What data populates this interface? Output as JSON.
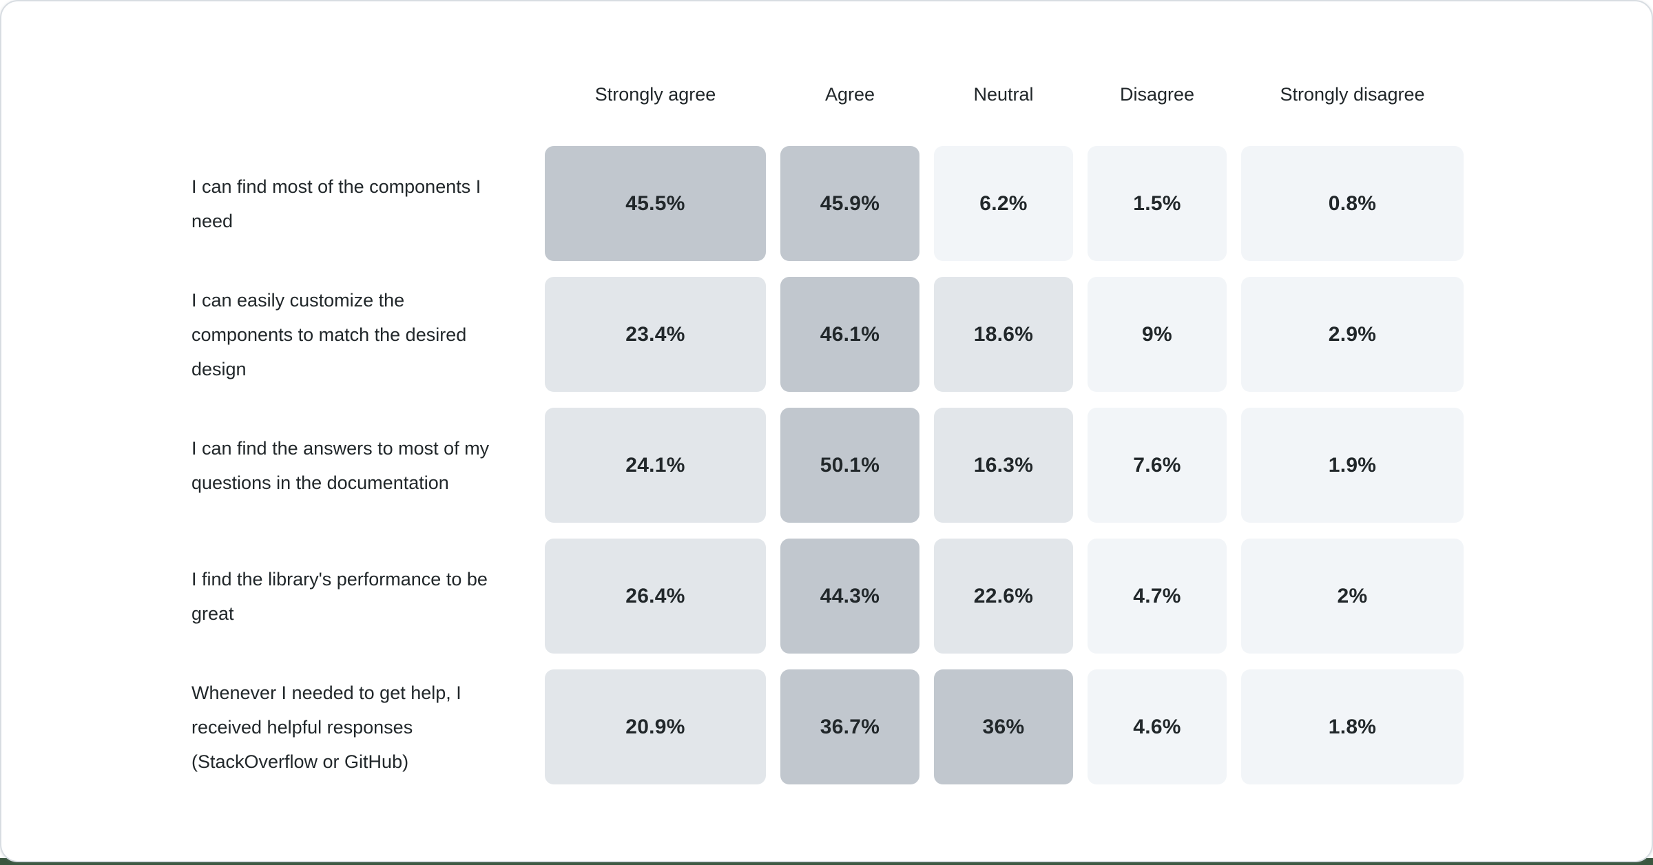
{
  "chart_data": {
    "type": "heatmap",
    "title": "",
    "columns": [
      "Strongly agree",
      "Agree",
      "Neutral",
      "Disagree",
      "Strongly disagree"
    ],
    "rows": [
      {
        "label": "I can find most of the components I need",
        "values": [
          45.5,
          45.9,
          6.2,
          1.5,
          0.8
        ],
        "display": [
          "45.5%",
          "45.9%",
          "6.2%",
          "1.5%",
          "0.8%"
        ]
      },
      {
        "label": "I can easily customize the components to match the desired design",
        "values": [
          23.4,
          46.1,
          18.6,
          9,
          2.9
        ],
        "display": [
          "23.4%",
          "46.1%",
          "18.6%",
          "9%",
          "2.9%"
        ]
      },
      {
        "label": "I can find the answers to most of my questions in the documentation",
        "values": [
          24.1,
          50.1,
          16.3,
          7.6,
          1.9
        ],
        "display": [
          "24.1%",
          "50.1%",
          "16.3%",
          "7.6%",
          "1.9%"
        ]
      },
      {
        "label": "I find the library's performance to be great",
        "values": [
          26.4,
          44.3,
          22.6,
          4.7,
          2
        ],
        "display": [
          "26.4%",
          "44.3%",
          "22.6%",
          "4.7%",
          "2%"
        ]
      },
      {
        "label": "Whenever I needed to get help, I received helpful responses (StackOverflow or GitHub)",
        "values": [
          20.9,
          36.7,
          36,
          4.6,
          1.8
        ],
        "display": [
          "20.9%",
          "36.7%",
          "36%",
          "4.6%",
          "1.8%"
        ]
      }
    ],
    "color_scale": {
      "thresholds": [
        10,
        30
      ],
      "colors": [
        "#f2f5f8",
        "#e2e6ea",
        "#c1c7ce"
      ],
      "legend": "cell shade darkens with higher percentage"
    },
    "text_color": "#21272a",
    "layout": {
      "grid": "off",
      "legend": "none",
      "value_labels": "centered in cells"
    }
  }
}
